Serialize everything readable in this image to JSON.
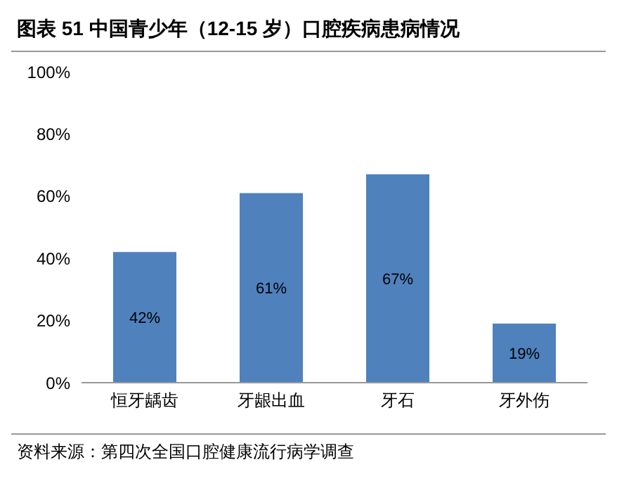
{
  "chart_data": {
    "type": "bar",
    "title": "图表 51  中国青少年（12-15 岁）口腔疾病患病情况",
    "categories": [
      "恒牙龋齿",
      "牙龈出血",
      "牙石",
      "牙外伤"
    ],
    "values": [
      42,
      61,
      67,
      19
    ],
    "value_labels": [
      "42%",
      "61%",
      "67%",
      "19%"
    ],
    "color": "#4f81bd",
    "ylim": [
      0,
      100
    ],
    "yticks": [
      {
        "value": 0,
        "label": "0%"
      },
      {
        "value": 20,
        "label": "20%"
      },
      {
        "value": 40,
        "label": "40%"
      },
      {
        "value": 60,
        "label": "60%"
      },
      {
        "value": 80,
        "label": "80%"
      },
      {
        "value": 100,
        "label": "100%"
      }
    ],
    "grid": false,
    "annotations": [
      "资料来源：第四次全国口腔健康流行病学调查"
    ]
  }
}
